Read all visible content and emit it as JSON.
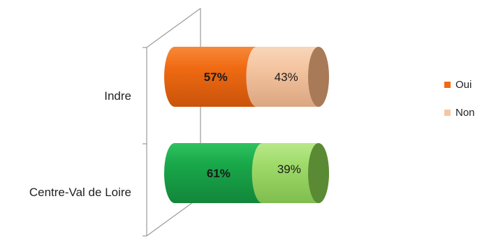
{
  "chart_data": {
    "type": "bar",
    "orientation": "horizontal",
    "stacked": true,
    "percent": true,
    "style": "3d-cylinder",
    "categories": [
      "Indre",
      "Centre-Val de Loire"
    ],
    "series": [
      {
        "name": "Oui",
        "values": [
          57,
          61
        ],
        "labels": [
          "57%",
          "61%"
        ],
        "colors": [
          "#f06a12",
          "#19a84a"
        ]
      },
      {
        "name": "Non",
        "values": [
          43,
          39
        ],
        "labels": [
          "43%",
          "39%"
        ],
        "colors": [
          "#f4c5a0",
          "#9fdb6a"
        ]
      }
    ],
    "xlim": [
      0,
      100
    ],
    "legend": {
      "position": "right",
      "items": [
        {
          "label": "Oui",
          "color": "#f06a12"
        },
        {
          "label": "Non",
          "color": "#f5c6a2"
        }
      ]
    },
    "grid": false
  }
}
